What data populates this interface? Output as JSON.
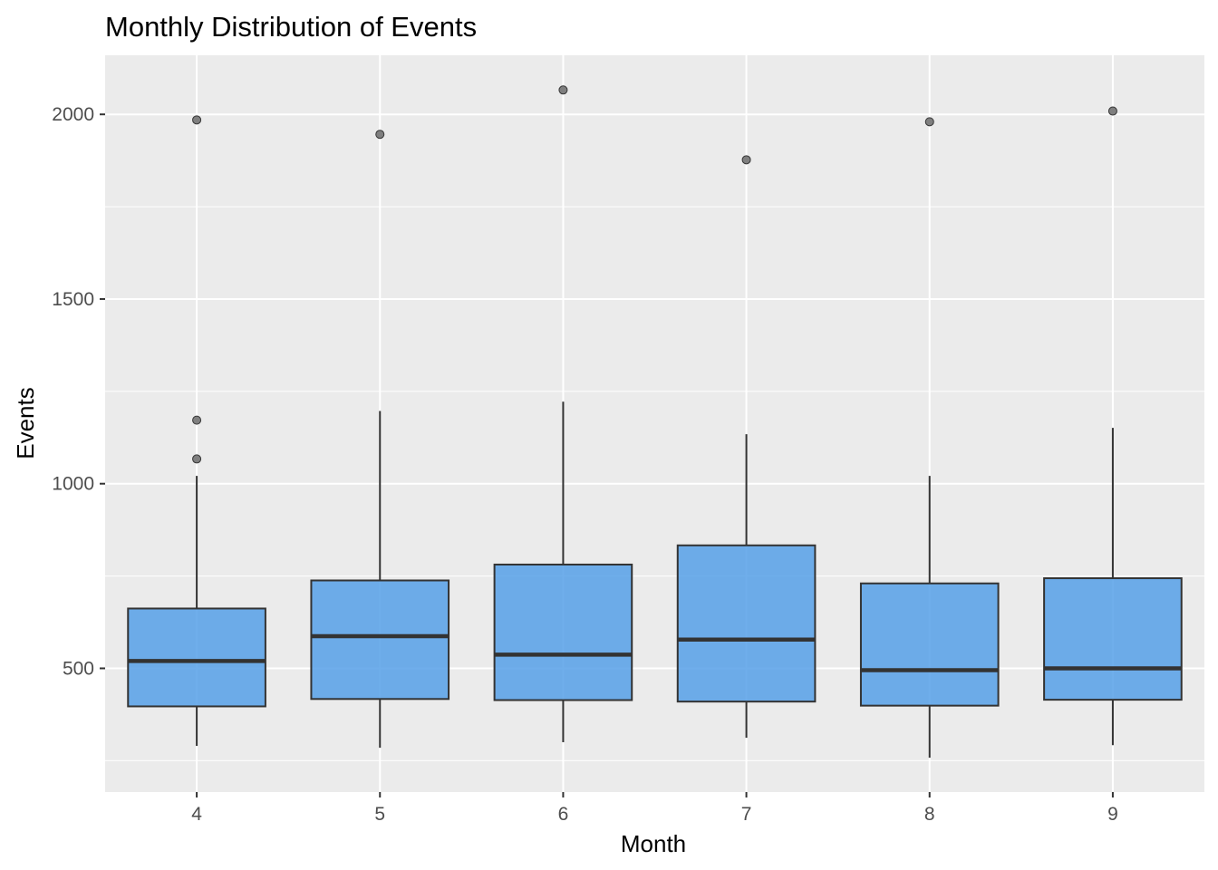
{
  "chart_data": {
    "type": "boxplot",
    "title": "Monthly Distribution of Events",
    "xlabel": "Month",
    "ylabel": "Events",
    "categories": [
      "4",
      "5",
      "6",
      "7",
      "8",
      "9"
    ],
    "ylim": [
      165,
      2160
    ],
    "yticks": [
      500,
      1000,
      1500,
      2000
    ],
    "grid": true,
    "legend": "none",
    "colors": {
      "box_fill": "#56A0E8",
      "box_stroke": "#333333",
      "panel_bg": "#EBEBEB",
      "grid": "#FFFFFF",
      "outlier": "#7F7F7F"
    },
    "boxes": [
      {
        "x": "4",
        "whisker_low": 290,
        "q1": 397,
        "median": 520,
        "q3": 662,
        "whisker_high": 1021,
        "outliers": [
          1067,
          1172,
          1985
        ]
      },
      {
        "x": "5",
        "whisker_low": 285,
        "q1": 417,
        "median": 587,
        "q3": 738,
        "whisker_high": 1197,
        "outliers": [
          1946
        ]
      },
      {
        "x": "6",
        "whisker_low": 300,
        "q1": 414,
        "median": 537,
        "q3": 781,
        "whisker_high": 1222,
        "outliers": [
          2066
        ]
      },
      {
        "x": "7",
        "whisker_low": 312,
        "q1": 410,
        "median": 578,
        "q3": 833,
        "whisker_high": 1134,
        "outliers": [
          1877
        ]
      },
      {
        "x": "8",
        "whisker_low": 258,
        "q1": 399,
        "median": 495,
        "q3": 730,
        "whisker_high": 1021,
        "outliers": [
          1980
        ]
      },
      {
        "x": "9",
        "whisker_low": 292,
        "q1": 415,
        "median": 500,
        "q3": 744,
        "whisker_high": 1151,
        "outliers": [
          2009
        ]
      }
    ]
  }
}
